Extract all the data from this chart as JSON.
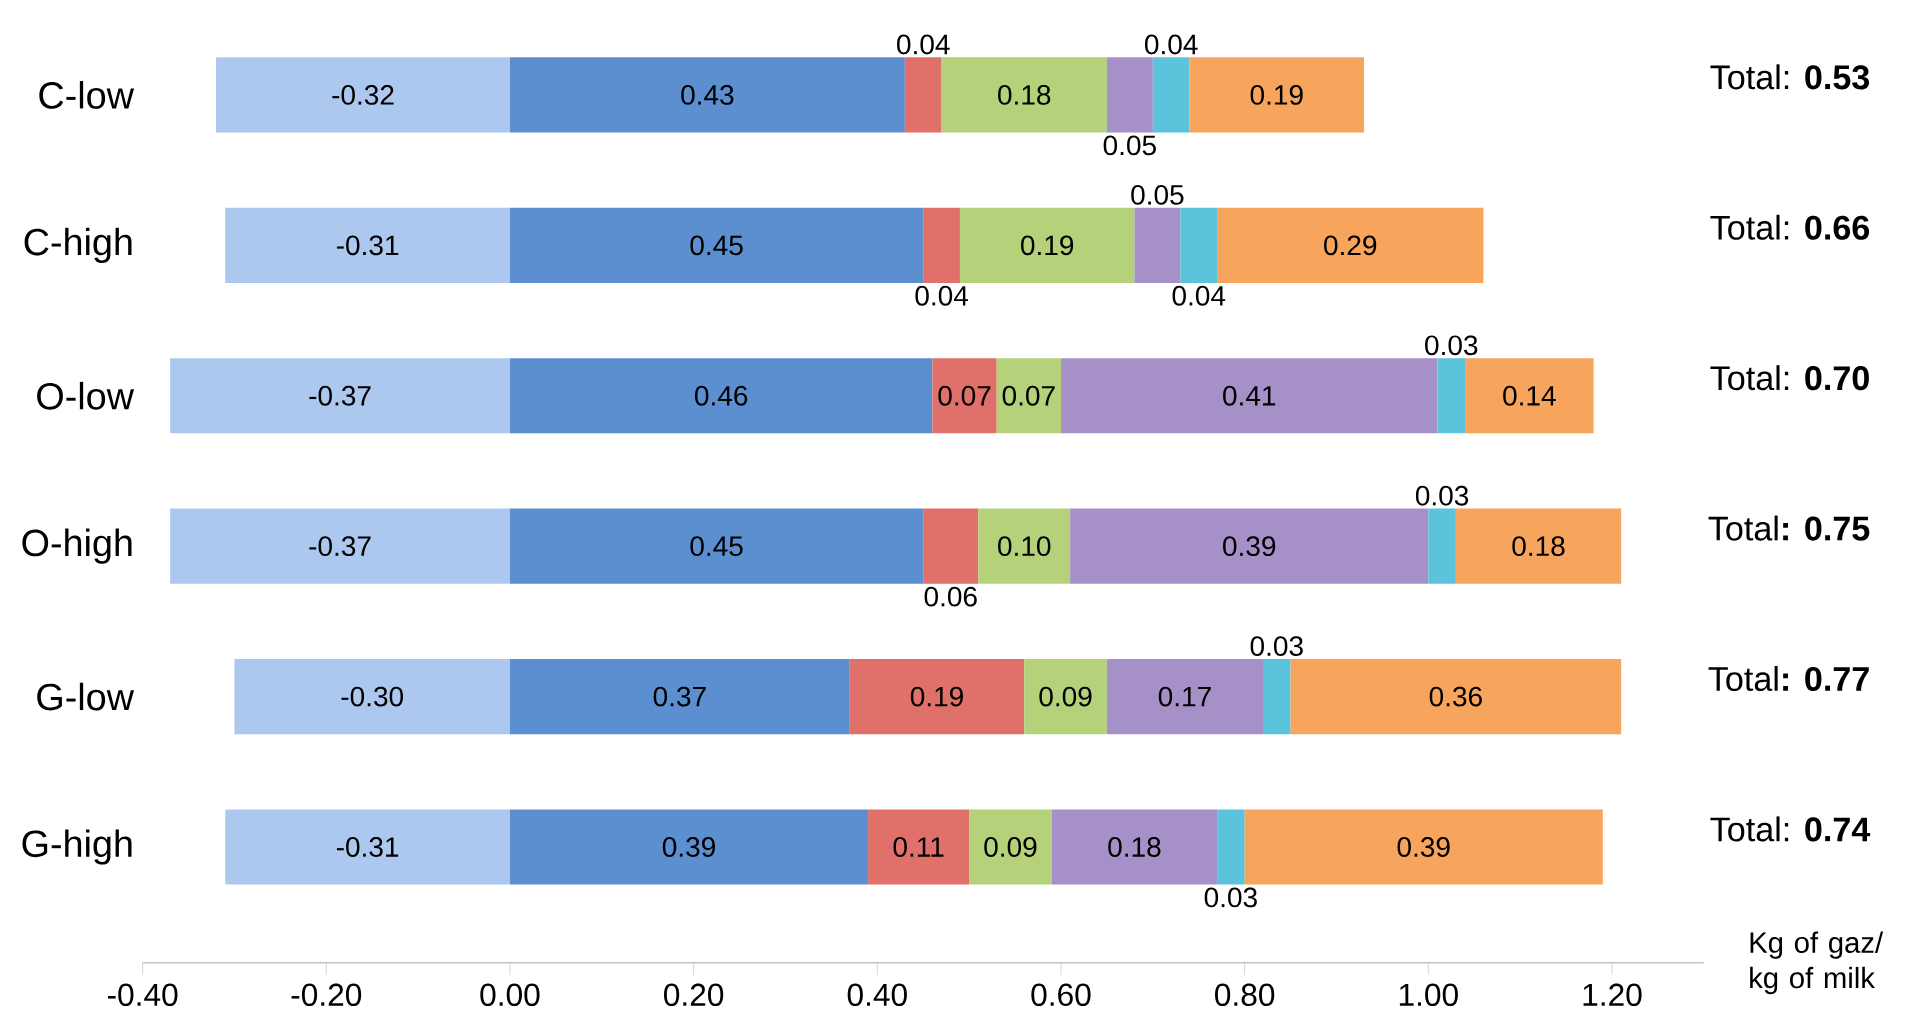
{
  "chart_data": {
    "type": "bar",
    "orientation": "horizontal",
    "stacked": true,
    "categories": [
      "C-low",
      "C-high",
      "O-low",
      "O-high",
      "G-low",
      "G-high"
    ],
    "series": [
      {
        "color": "#adc8ee",
        "values": [
          -0.32,
          -0.31,
          -0.37,
          -0.37,
          -0.3,
          -0.31
        ],
        "value_labels": [
          "-0.32",
          "-0.31",
          "-0.37",
          "-0.37",
          "-0.30",
          "-0.31"
        ]
      },
      {
        "color": "#5b8fcf",
        "values": [
          0.43,
          0.45,
          0.46,
          0.45,
          0.37,
          0.39
        ],
        "value_labels": [
          "0.43",
          "0.45",
          "0.46",
          "0.45",
          "0.37",
          "0.39"
        ]
      },
      {
        "color": "#e0706a",
        "values": [
          0.04,
          0.04,
          0.07,
          0.06,
          0.19,
          0.11
        ],
        "value_labels": [
          "0.04",
          "0.04",
          "0.07",
          "0.06",
          "0.19",
          "0.11"
        ]
      },
      {
        "color": "#b5d27a",
        "values": [
          0.18,
          0.19,
          0.07,
          0.1,
          0.09,
          0.09
        ],
        "value_labels": [
          "0.18",
          "0.19",
          "0.07",
          "0.10",
          "0.09",
          "0.09"
        ]
      },
      {
        "color": "#a590c8",
        "values": [
          0.05,
          0.05,
          0.41,
          0.39,
          0.17,
          0.18
        ],
        "value_labels": [
          "0.05",
          "0.05",
          "0.41",
          "0.39",
          "0.17",
          "0.18"
        ]
      },
      {
        "color": "#5cc3dc",
        "values": [
          0.04,
          0.04,
          0.03,
          0.03,
          0.03,
          0.03
        ],
        "value_labels": [
          "0.04",
          "0.04",
          "0.03",
          "0.03",
          "0.03",
          "0.03"
        ]
      },
      {
        "color": "#f7a45c",
        "values": [
          0.19,
          0.29,
          0.14,
          0.18,
          0.36,
          0.39
        ],
        "value_labels": [
          "0.19",
          "0.29",
          "0.14",
          "0.18",
          "0.36",
          "0.39"
        ]
      }
    ],
    "annotations": [
      "Total: **0.53**",
      "Total: **0.66**",
      "Total: **0.70**",
      "Total**: 0.75**",
      "Total**: 0.77**",
      "Total: **0.74**"
    ],
    "xlim": [
      -0.4,
      1.3
    ],
    "xticks": [
      {
        "value": -0.4,
        "label": "-0.40"
      },
      {
        "value": -0.2,
        "label": "-0.20"
      },
      {
        "value": 0,
        "label": "0.00"
      },
      {
        "value": 0.2,
        "label": "0.20"
      },
      {
        "value": 0.4,
        "label": "0.40"
      },
      {
        "value": 0.6,
        "label": "0.60"
      },
      {
        "value": 0.8,
        "label": "0.80"
      },
      {
        "value": 1.0,
        "label": "1.00"
      },
      {
        "value": 1.2,
        "label": "1.20"
      }
    ],
    "xlabel": "Kg of gaz/ kg of milk"
  }
}
